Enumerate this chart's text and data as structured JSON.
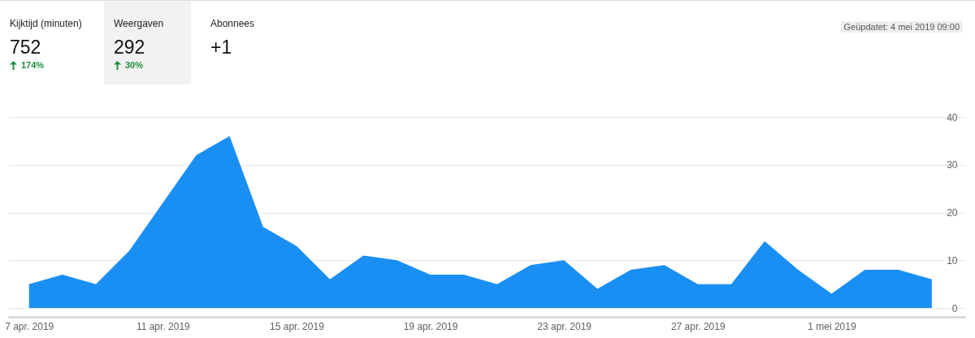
{
  "chart_data": [
    {
      "type": "other",
      "annotations": [
        "Kijktijd (minuten)",
        "752",
        "174%",
        "Weergaven",
        "292",
        "30%",
        "Abonnees",
        "+1",
        "Geüpdatet: 4 mei 2019 09:00"
      ]
    },
    {
      "type": "area",
      "x": [
        "2019-04-07",
        "2019-04-08",
        "2019-04-09",
        "2019-04-10",
        "2019-04-11",
        "2019-04-12",
        "2019-04-13",
        "2019-04-14",
        "2019-04-15",
        "2019-04-16",
        "2019-04-17",
        "2019-04-18",
        "2019-04-19",
        "2019-04-20",
        "2019-04-21",
        "2019-04-22",
        "2019-04-23",
        "2019-04-24",
        "2019-04-25",
        "2019-04-26",
        "2019-04-27",
        "2019-04-28",
        "2019-04-29",
        "2019-04-30",
        "2019-05-01",
        "2019-05-02",
        "2019-05-03",
        "2019-05-04"
      ],
      "series": [
        {
          "color": "#1a8ff3",
          "values": [
            5,
            7,
            5,
            12,
            22,
            32,
            36,
            17,
            13,
            6,
            11,
            10,
            7,
            7,
            5,
            9,
            10,
            4,
            8,
            9,
            5,
            5,
            14,
            8,
            3,
            8,
            8,
            6
          ]
        }
      ],
      "xlim": [
        "2019-04-06T09:00",
        "2019-05-05T00:00"
      ],
      "xticks": [
        {
          "value": "2019-04-07",
          "label": "7 apr. 2019"
        },
        {
          "value": "2019-04-11",
          "label": "11 apr. 2019"
        },
        {
          "value": "2019-04-15",
          "label": "15 apr. 2019"
        },
        {
          "value": "2019-04-19",
          "label": "19 apr. 2019"
        },
        {
          "value": "2019-04-23",
          "label": "23 apr. 2019"
        },
        {
          "value": "2019-04-27",
          "label": "27 apr. 2019"
        },
        {
          "value": "2019-05-01",
          "label": "1 mei 2019"
        }
      ],
      "ylim": [
        0,
        40
      ],
      "yticks": [
        0,
        10,
        20,
        30,
        40
      ],
      "grid": "y",
      "legend": false
    }
  ]
}
